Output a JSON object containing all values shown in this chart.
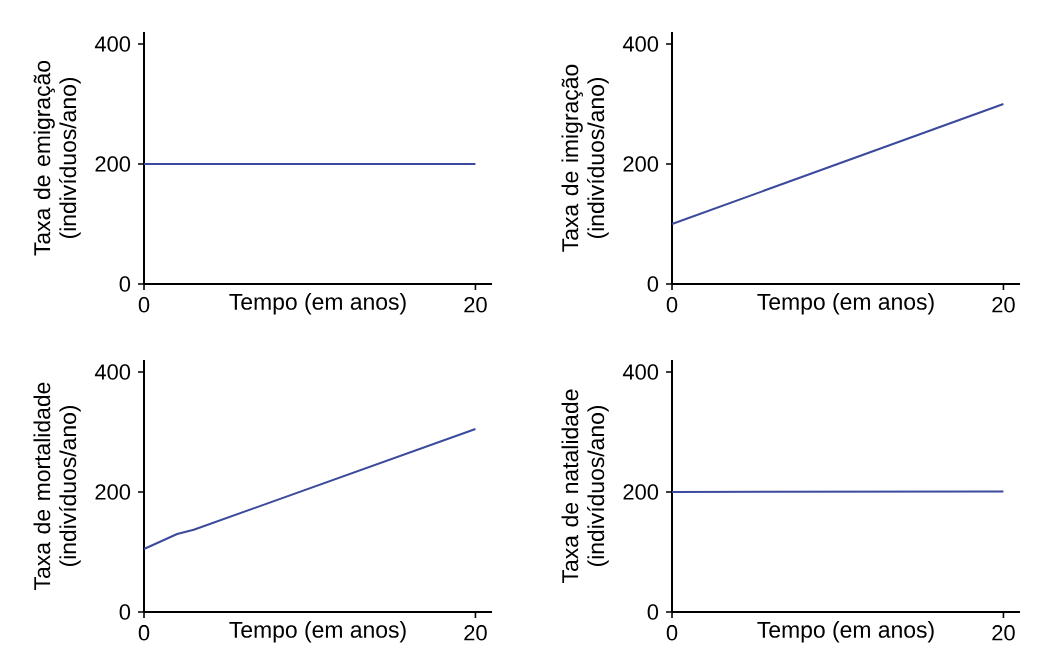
{
  "chart_data": [
    {
      "type": "line",
      "ylabel": "Taxa de emigração (indivíduos/ano)",
      "xlabel": "Tempo (em anos)",
      "x": [
        0,
        20
      ],
      "values": [
        200,
        200
      ],
      "color": "#3b4a9c",
      "xlim": [
        0,
        21
      ],
      "ylim": [
        0,
        420
      ],
      "xticks": [
        0,
        20
      ],
      "yticks": [
        0,
        200,
        400
      ]
    },
    {
      "type": "line",
      "ylabel": "Taxa de imigração (indivíduos/ano)",
      "xlabel": "Tempo (em anos)",
      "x": [
        0,
        20
      ],
      "values": [
        100,
        300
      ],
      "color": "#3b4a9c",
      "xlim": [
        0,
        21
      ],
      "ylim": [
        0,
        420
      ],
      "xticks": [
        0,
        20
      ],
      "yticks": [
        0,
        200,
        400
      ]
    },
    {
      "type": "line",
      "ylabel": "Taxa de mortalidade (indivíduos/ano)",
      "xlabel": "Tempo (em anos)",
      "x": [
        0,
        2,
        3,
        20
      ],
      "values": [
        105,
        130,
        137,
        305
      ],
      "color": "#3b4a9c",
      "xlim": [
        0,
        21
      ],
      "ylim": [
        0,
        420
      ],
      "xticks": [
        0,
        20
      ],
      "yticks": [
        0,
        200,
        400
      ]
    },
    {
      "type": "line",
      "ylabel": "Taxa de natalidade (indivíduos/ano)",
      "xlabel": "Tempo (em anos)",
      "x": [
        0,
        20
      ],
      "values": [
        200,
        201
      ],
      "color": "#3b4a9c",
      "xlim": [
        0,
        21
      ],
      "ylim": [
        0,
        420
      ],
      "xticks": [
        0,
        20
      ],
      "yticks": [
        0,
        200,
        400
      ]
    }
  ]
}
